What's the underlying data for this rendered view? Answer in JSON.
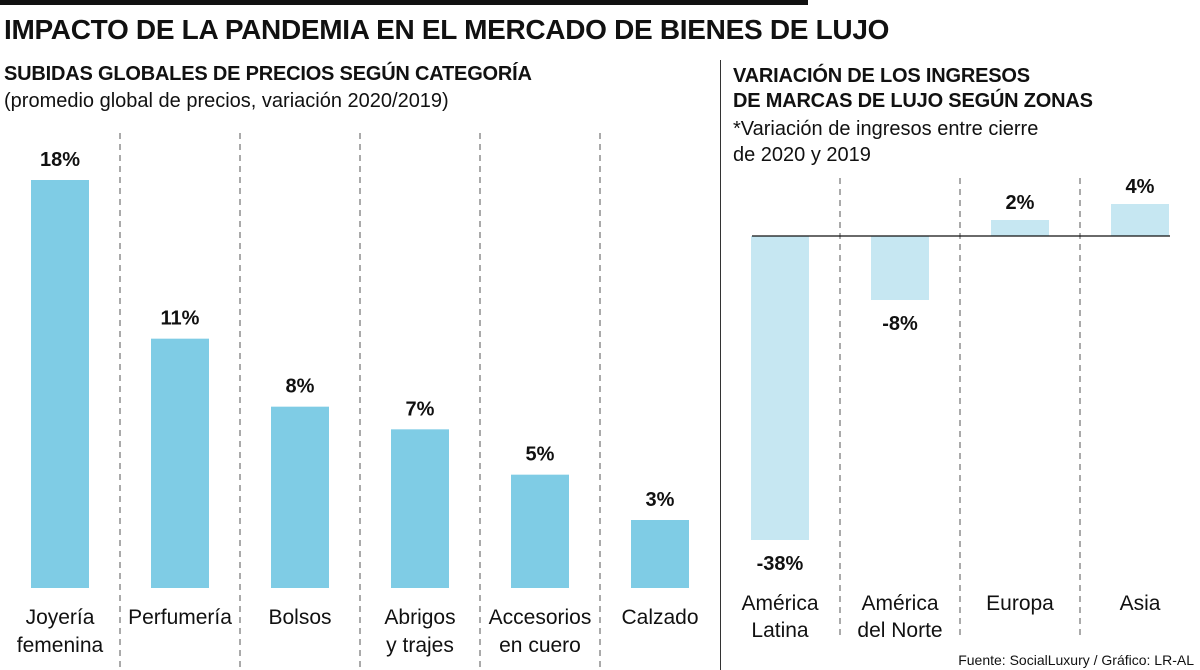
{
  "title": "IMPACTO DE LA PANDEMIA EN EL MERCADO DE BIENES DE LUJO",
  "source": "Fuente: SocialLuxury / Gráfico: LR-AL",
  "colors": {
    "left_bar": "#7FCCE5",
    "right_bar": "#C6E7F2",
    "text": "#111111"
  },
  "chart_data": [
    {
      "type": "bar",
      "title": "SUBIDAS GLOBALES DE PRECIOS SEGÚN CATEGORÍA",
      "subtitle": "(promedio global de precios, variación 2020/2019)",
      "categories": [
        [
          "Joyería",
          "femenina"
        ],
        [
          "Perfumería"
        ],
        [
          "Bolsos"
        ],
        [
          "Abrigos",
          "y trajes"
        ],
        [
          "Accesorios",
          "en cuero"
        ],
        [
          "Calzado"
        ]
      ],
      "values": [
        18,
        11,
        8,
        7,
        5,
        3
      ],
      "value_labels": [
        "18%",
        "11%",
        "8%",
        "7%",
        "5%",
        "3%"
      ],
      "unit": "%",
      "ylim": [
        0,
        18
      ],
      "grid": false
    },
    {
      "type": "bar",
      "title_lines": [
        "VARIACIÓN DE LOS INGRESOS",
        "DE MARCAS DE LUJO SEGÚN ZONAS"
      ],
      "note_lines": [
        "*Variación de ingresos entre cierre",
        "de 2020 y 2019"
      ],
      "categories": [
        [
          "América",
          "Latina"
        ],
        [
          "América",
          "del Norte"
        ],
        [
          "Europa"
        ],
        [
          "Asia"
        ]
      ],
      "values": [
        -38,
        -8,
        2,
        4
      ],
      "value_labels": [
        "-38%",
        "-8%",
        "2%",
        "4%"
      ],
      "unit": "%",
      "ylim": [
        -38,
        4
      ],
      "grid": false
    }
  ]
}
